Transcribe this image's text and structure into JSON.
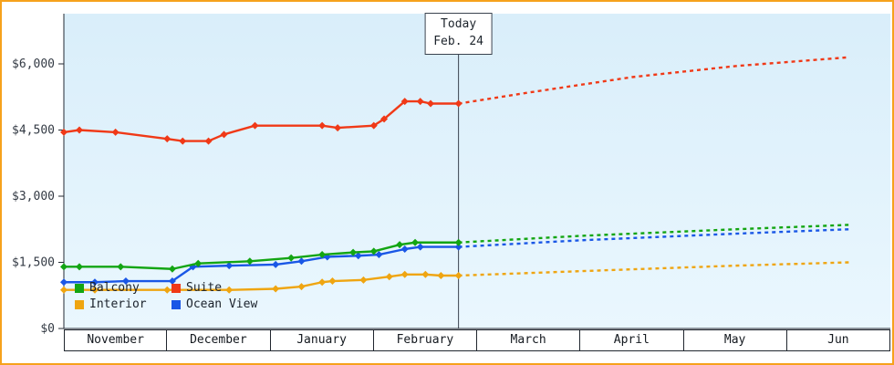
{
  "window": {
    "border_color": "#f6a21c",
    "background": "#ffffff"
  },
  "chart_data": {
    "type": "line",
    "title": "",
    "xlabel": "",
    "ylabel": "",
    "x_unit": "month index, Nov=0 .. Jun=7, fractions are days within month",
    "x_axis": {
      "months": [
        "November",
        "December",
        "January",
        "February",
        "March",
        "April",
        "May",
        "Jun"
      ]
    },
    "y_axis": {
      "tick_values": [
        0,
        1500,
        3000,
        4500,
        6000
      ],
      "tick_labels": [
        "$0",
        "$1,500",
        "$3,000",
        "$4,500",
        "$6,000"
      ],
      "ylim": [
        0,
        7100
      ]
    },
    "today": {
      "line1": "Today",
      "line2": "Feb. 24",
      "x": 3.82
    },
    "plot_background": {
      "top": "#d9eefa",
      "bottom": "#eaf7fe"
    },
    "axis_color": "#232a33",
    "today_line_color": "#3a434f",
    "legend_position": "bottom-left-inside",
    "grid": false,
    "series": [
      {
        "name": "Balcony",
        "color": "#13a513",
        "solid": [
          [
            0,
            1400
          ],
          [
            0.15,
            1400
          ],
          [
            0.55,
            1400
          ],
          [
            1.05,
            1350
          ],
          [
            1.3,
            1475
          ],
          [
            1.8,
            1525
          ],
          [
            2.2,
            1600
          ],
          [
            2.5,
            1675
          ],
          [
            2.8,
            1725
          ],
          [
            3.0,
            1750
          ],
          [
            3.25,
            1900
          ],
          [
            3.4,
            1950
          ],
          [
            3.82,
            1950
          ]
        ],
        "projected": [
          [
            3.82,
            1950
          ],
          [
            5.0,
            2100
          ],
          [
            6.5,
            2250
          ],
          [
            7.6,
            2350
          ]
        ]
      },
      {
        "name": "Suite",
        "color": "#f03917",
        "solid": [
          [
            0,
            4450
          ],
          [
            0.15,
            4500
          ],
          [
            0.5,
            4450
          ],
          [
            1.0,
            4300
          ],
          [
            1.15,
            4250
          ],
          [
            1.4,
            4250
          ],
          [
            1.55,
            4400
          ],
          [
            1.85,
            4600
          ],
          [
            2.5,
            4600
          ],
          [
            2.65,
            4550
          ],
          [
            3.0,
            4600
          ],
          [
            3.1,
            4750
          ],
          [
            3.3,
            5150
          ],
          [
            3.45,
            5150
          ],
          [
            3.55,
            5100
          ],
          [
            3.82,
            5100
          ]
        ],
        "projected": [
          [
            3.82,
            5100
          ],
          [
            4.5,
            5350
          ],
          [
            5.5,
            5700
          ],
          [
            6.5,
            5950
          ],
          [
            7.6,
            6150
          ]
        ]
      },
      {
        "name": "Interior",
        "color": "#efa511",
        "solid": [
          [
            0,
            875
          ],
          [
            0.3,
            875
          ],
          [
            1.0,
            875
          ],
          [
            1.6,
            875
          ],
          [
            2.05,
            900
          ],
          [
            2.3,
            950
          ],
          [
            2.5,
            1050
          ],
          [
            2.6,
            1075
          ],
          [
            2.9,
            1100
          ],
          [
            3.15,
            1175
          ],
          [
            3.3,
            1225
          ],
          [
            3.5,
            1225
          ],
          [
            3.65,
            1200
          ],
          [
            3.82,
            1200
          ]
        ],
        "projected": [
          [
            3.82,
            1200
          ],
          [
            5.0,
            1300
          ],
          [
            6.5,
            1425
          ],
          [
            7.6,
            1500
          ]
        ]
      },
      {
        "name": "Ocean View",
        "color": "#1a57e6",
        "solid": [
          [
            0,
            1050
          ],
          [
            0.3,
            1050
          ],
          [
            0.6,
            1075
          ],
          [
            1.05,
            1075
          ],
          [
            1.25,
            1400
          ],
          [
            1.6,
            1425
          ],
          [
            2.05,
            1450
          ],
          [
            2.3,
            1525
          ],
          [
            2.55,
            1625
          ],
          [
            2.85,
            1650
          ],
          [
            3.05,
            1675
          ],
          [
            3.3,
            1800
          ],
          [
            3.45,
            1850
          ],
          [
            3.82,
            1850
          ]
        ],
        "projected": [
          [
            3.82,
            1850
          ],
          [
            5.0,
            2000
          ],
          [
            6.5,
            2150
          ],
          [
            7.6,
            2250
          ]
        ]
      }
    ]
  }
}
